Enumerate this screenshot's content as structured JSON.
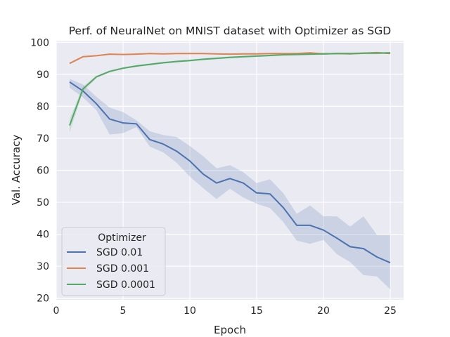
{
  "chart_data": {
    "type": "line",
    "title": "Perf. of NeuralNet on MNIST dataset with Optimizer as SGD",
    "xlabel": "Epoch",
    "ylabel": "Val. Accuracy",
    "xlim": [
      0,
      26
    ],
    "ylim": [
      19.5,
      100.5
    ],
    "xticks": [
      0,
      5,
      10,
      15,
      20,
      25
    ],
    "yticks": [
      20,
      30,
      40,
      50,
      60,
      70,
      80,
      90,
      100
    ],
    "grid": true,
    "legend": {
      "title": "Optimizer",
      "placement": "bottom-left"
    },
    "x": [
      1,
      2,
      3,
      4,
      5,
      6,
      7,
      8,
      9,
      10,
      11,
      12,
      13,
      14,
      15,
      16,
      17,
      18,
      19,
      20,
      21,
      22,
      23,
      24,
      25
    ],
    "series": [
      {
        "name": "SGD 0.01",
        "color": "#4c72b0",
        "values": [
          87.6,
          84.8,
          80.8,
          76.0,
          74.8,
          74.5,
          69.6,
          68.2,
          66.0,
          62.9,
          58.8,
          56.0,
          57.4,
          56.0,
          52.9,
          52.6,
          48.3,
          42.8,
          42.8,
          41.3,
          38.8,
          36.1,
          35.5,
          32.9,
          31.1
        ],
        "lower": [
          85.8,
          82.8,
          78.8,
          71.2,
          71.6,
          73.5,
          67.4,
          65.6,
          62.4,
          58.0,
          54.4,
          51.0,
          54.2,
          51.5,
          49.5,
          48.2,
          43.8,
          38.0,
          37.0,
          38.2,
          33.8,
          31.3,
          27.2,
          26.8,
          22.8
        ],
        "upper": [
          88.6,
          86.8,
          83.0,
          79.6,
          78.2,
          75.6,
          72.2,
          71.0,
          70.4,
          67.6,
          64.4,
          60.6,
          61.6,
          59.4,
          56.0,
          57.2,
          52.8,
          46.4,
          49.0,
          45.6,
          45.6,
          42.4,
          45.6,
          39.8,
          39.8
        ]
      },
      {
        "name": "SGD 0.001",
        "color": "#dd8452",
        "values": [
          93.4,
          95.5,
          95.8,
          96.3,
          96.2,
          96.3,
          96.5,
          96.4,
          96.5,
          96.5,
          96.5,
          96.4,
          96.3,
          96.4,
          96.4,
          96.5,
          96.5,
          96.5,
          96.7,
          96.4,
          96.5,
          96.4,
          96.6,
          96.8,
          96.5
        ],
        "lower": [
          93.2,
          95.3,
          95.6,
          96.1,
          96.0,
          96.1,
          96.3,
          96.2,
          96.3,
          96.3,
          96.3,
          96.2,
          96.1,
          96.2,
          96.2,
          96.3,
          96.3,
          96.3,
          96.4,
          96.2,
          96.3,
          96.2,
          96.4,
          96.6,
          96.3
        ],
        "upper": [
          93.6,
          95.7,
          96.0,
          96.5,
          96.4,
          96.5,
          96.7,
          96.6,
          96.7,
          96.7,
          96.7,
          96.6,
          96.5,
          96.6,
          96.6,
          96.7,
          96.7,
          96.7,
          96.9,
          96.6,
          96.7,
          96.6,
          96.8,
          97.0,
          96.7
        ]
      },
      {
        "name": "SGD 0.0001",
        "color": "#55a868",
        "values": [
          74.0,
          85.4,
          89.2,
          90.9,
          91.9,
          92.6,
          93.1,
          93.6,
          94.0,
          94.3,
          94.7,
          95.0,
          95.3,
          95.5,
          95.7,
          95.9,
          96.1,
          96.2,
          96.3,
          96.4,
          96.5,
          96.5,
          96.6,
          96.6,
          96.7
        ],
        "lower": [
          71.8,
          84.6,
          88.8,
          90.6,
          91.6,
          92.3,
          92.8,
          93.3,
          93.7,
          94.0,
          94.4,
          94.7,
          95.0,
          95.2,
          95.4,
          95.6,
          95.8,
          95.9,
          96.0,
          96.1,
          96.2,
          96.2,
          96.3,
          96.3,
          96.4
        ],
        "upper": [
          76.0,
          86.2,
          89.6,
          91.2,
          92.2,
          92.9,
          93.4,
          93.9,
          94.3,
          94.6,
          95.0,
          95.3,
          95.6,
          95.8,
          96.0,
          96.2,
          96.4,
          96.5,
          96.6,
          96.7,
          96.8,
          96.8,
          96.9,
          96.9,
          97.0
        ]
      }
    ]
  }
}
